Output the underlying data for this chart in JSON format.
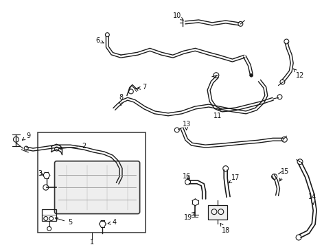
{
  "bg_color": "#ffffff",
  "line_color": "#1a1a1a",
  "fig_width": 4.89,
  "fig_height": 3.6,
  "dpi": 100,
  "label_fontsize": 7.0
}
